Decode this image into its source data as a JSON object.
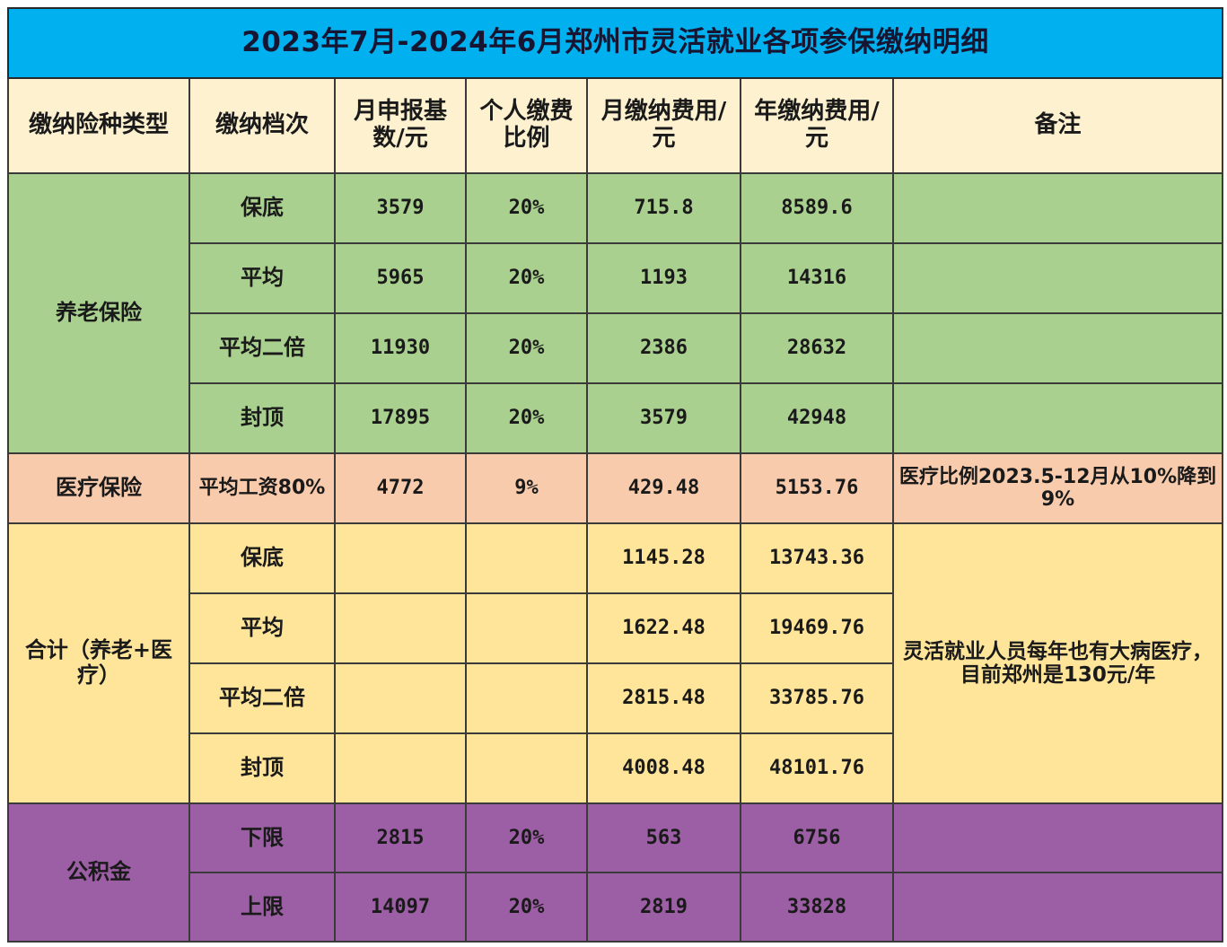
{
  "title": "2023年7月-2024年6月郑州市灵活就业各项参保缴纳明细",
  "headers": {
    "type": "缴纳险种类型",
    "level": "缴纳档次",
    "base": "月申报基数/元",
    "ratio": "个人缴费比例",
    "monthly": "月缴纳费用/元",
    "annual": "年缴纳费用/元",
    "remark": "备注"
  },
  "pension": {
    "label": "养老保险",
    "rows": [
      {
        "level": "保底",
        "base": "3579",
        "ratio": "20%",
        "monthly": "715.8",
        "annual": "8589.6"
      },
      {
        "level": "平均",
        "base": "5965",
        "ratio": "20%",
        "monthly": "1193",
        "annual": "14316"
      },
      {
        "level": "平均二倍",
        "base": "11930",
        "ratio": "20%",
        "monthly": "2386",
        "annual": "28632"
      },
      {
        "level": "封顶",
        "base": "17895",
        "ratio": "20%",
        "monthly": "3579",
        "annual": "42948"
      }
    ]
  },
  "medical": {
    "label": "医疗保险",
    "level": "平均工资80%",
    "base": "4772",
    "ratio": "9%",
    "monthly": "429.48",
    "annual": "5153.76",
    "remark": "医疗比例2023.5-12月从10%降到9%"
  },
  "total": {
    "label": "合计（养老+医疗）",
    "remark": "灵活就业人员每年也有大病医疗，目前郑州是130元/年",
    "rows": [
      {
        "level": "保底",
        "monthly": "1145.28",
        "annual": "13743.36"
      },
      {
        "level": "平均",
        "monthly": "1622.48",
        "annual": "19469.76"
      },
      {
        "level": "平均二倍",
        "monthly": "2815.48",
        "annual": "33785.76"
      },
      {
        "level": "封顶",
        "monthly": "4008.48",
        "annual": "48101.76"
      }
    ]
  },
  "fund": {
    "label": "公积金",
    "rows": [
      {
        "level": "下限",
        "base": "2815",
        "ratio": "20%",
        "monthly": "563",
        "annual": "6756"
      },
      {
        "level": "上限",
        "base": "14097",
        "ratio": "20%",
        "monthly": "2819",
        "annual": "33828"
      }
    ]
  },
  "colors": {
    "title_bg": "#00b0ef",
    "header_bg": "#fdf1cf",
    "pension_bg": "#a9d08e",
    "medical_bg": "#f8cbad",
    "total_bg": "#ffe59a",
    "fund_bg": "#9c5ea4"
  }
}
